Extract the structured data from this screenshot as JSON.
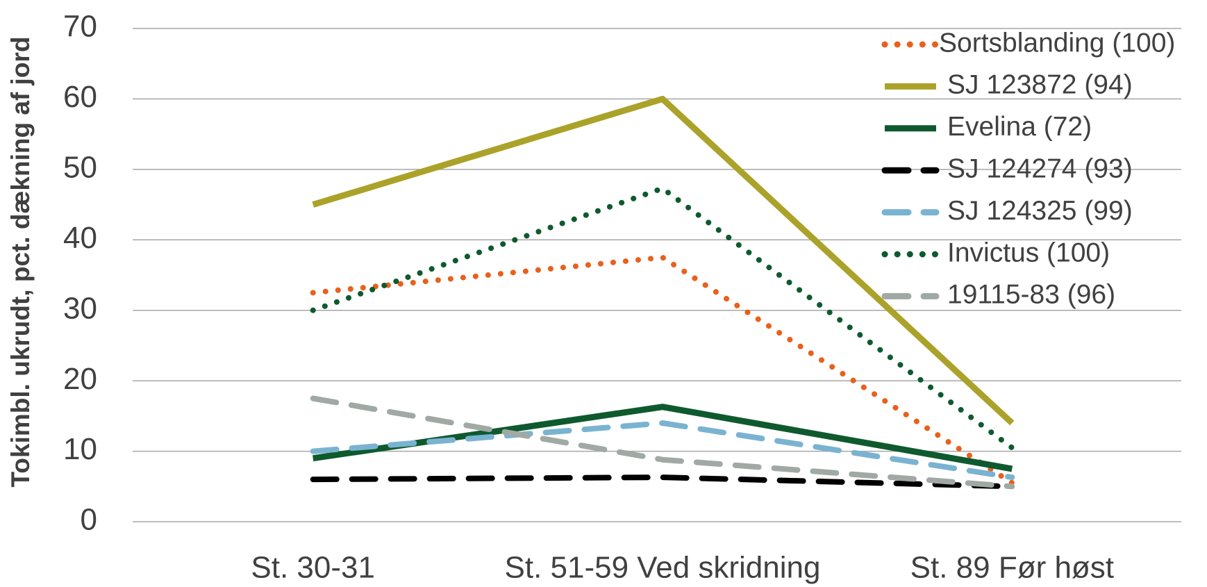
{
  "chart_data": {
    "type": "line",
    "y_label": "Tokimbl. ukrudt, pct. dækning af jord",
    "categories": [
      "St. 30-31",
      "St. 51-59 Ved skridning",
      "St. 89 Før høst"
    ],
    "ylim": [
      0,
      70
    ],
    "yticks": [
      0,
      10,
      20,
      30,
      40,
      50,
      60,
      70
    ],
    "grid": true,
    "legend": "upper right",
    "series": [
      {
        "name": "Sortsblanding (100)",
        "color": "#e8601c",
        "style": "dotted",
        "values": [
          32.5,
          37.5,
          5.5
        ]
      },
      {
        "name": "SJ 123872 (94)",
        "color": "#aba22a",
        "style": "solid",
        "values": [
          45,
          60,
          14
        ]
      },
      {
        "name": "Evelina (72)",
        "color": "#0e5a2e",
        "style": "solid",
        "values": [
          9,
          16.3,
          7.5
        ]
      },
      {
        "name": "SJ 124274 (93)",
        "color": "#000000",
        "style": "dashed",
        "values": [
          6,
          6.3,
          5
        ]
      },
      {
        "name": "SJ 124325 (99)",
        "color": "#7ab3d1",
        "style": "dashed",
        "values": [
          10,
          14,
          6.3
        ]
      },
      {
        "name": "Invictus (100)",
        "color": "#0e5a2e",
        "style": "dotted",
        "values": [
          30,
          47.3,
          10.5
        ]
      },
      {
        "name": "19115-83 (96)",
        "color": "#a0a9a3",
        "style": "dashed",
        "values": [
          17.5,
          8.8,
          5
        ]
      }
    ]
  }
}
